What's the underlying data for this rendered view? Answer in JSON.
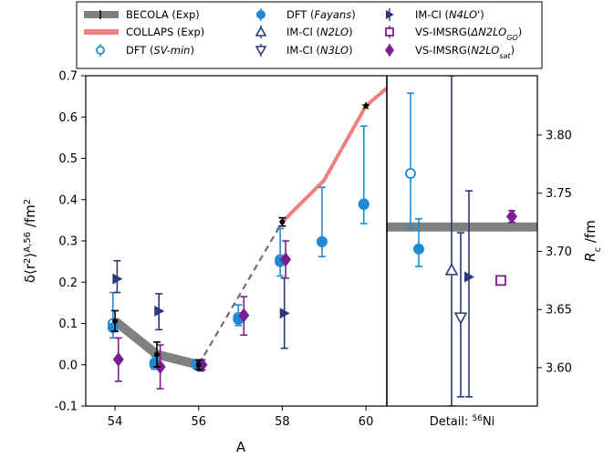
{
  "chart_data": [
    {
      "type": "scatter",
      "panel": "main",
      "xlabel": "A",
      "ylabel": "δ⟨r²⟩^{A,56} /fm²",
      "xlim": [
        53.3,
        60.5
      ],
      "ylim": [
        -0.1,
        0.7
      ],
      "x_ticks": [
        54,
        56,
        58,
        60
      ],
      "y_ticks": [
        -0.1,
        0.0,
        0.1,
        0.2,
        0.3,
        0.4,
        0.5,
        0.6,
        0.7
      ],
      "series": [
        {
          "name": "BECOLA (Exp)",
          "style": "band-line-black-errorbars",
          "points": [
            {
              "x": 54,
              "y": 0.106,
              "err": 0.025
            },
            {
              "x": 55,
              "y": 0.025,
              "err": 0.03
            },
            {
              "x": 56,
              "y": 0.0,
              "err": 0.012
            },
            {
              "x": 58,
              "y": 0.346,
              "err": 0.01
            }
          ]
        },
        {
          "name": "COLLAPS (Exp)",
          "style": "pink-line",
          "points": [
            {
              "x": 58,
              "y": 0.346
            },
            {
              "x": 59,
              "y": 0.447
            },
            {
              "x": 60,
              "y": 0.627
            },
            {
              "x": 60.5,
              "y": 0.67
            }
          ]
        },
        {
          "name": "DFT (SV-min)",
          "style": "hollow-circle",
          "points": [
            {
              "x": 54,
              "y": 0.1,
              "lo": 0.065,
              "hi": 0.175
            },
            {
              "x": 55,
              "y": 0.0,
              "lo": -0.01,
              "hi": 0.02
            },
            {
              "x": 56,
              "y": 0.0,
              "lo": -0.01,
              "hi": 0.01
            },
            {
              "x": 57,
              "y": 0.115,
              "lo": 0.095,
              "hi": 0.145
            },
            {
              "x": 58,
              "y": 0.255,
              "lo": 0.215,
              "hi": 0.33
            },
            {
              "x": 59,
              "y": 0.298,
              "lo": 0.262,
              "hi": 0.43
            },
            {
              "x": 60,
              "y": 0.39,
              "lo": 0.342,
              "hi": 0.578
            }
          ]
        },
        {
          "name": "DFT (Fayans)",
          "style": "filled-circle",
          "points": [
            {
              "x": 54,
              "y": 0.09
            },
            {
              "x": 55,
              "y": 0.005
            },
            {
              "x": 56,
              "y": 0.0
            },
            {
              "x": 57,
              "y": 0.11
            },
            {
              "x": 58,
              "y": 0.25
            },
            {
              "x": 59,
              "y": 0.298
            },
            {
              "x": 60,
              "y": 0.388
            }
          ]
        },
        {
          "name": "IM-CI (N4LO')",
          "style": "right-triangle",
          "points": [
            {
              "x": 54,
              "y": 0.208,
              "lo": 0.175,
              "hi": 0.252
            },
            {
              "x": 55,
              "y": 0.13,
              "lo": 0.085,
              "hi": 0.172
            },
            {
              "x": 56,
              "y": 0.0,
              "lo": -0.015,
              "hi": 0.012
            },
            {
              "x": 58,
              "y": 0.125,
              "lo": 0.04,
              "hi": 0.21
            }
          ]
        },
        {
          "name": "VS-IMSRG(N2LO_sat)",
          "style": "diamond",
          "points": [
            {
              "x": 54,
              "y": 0.013,
              "lo": -0.04,
              "hi": 0.065
            },
            {
              "x": 55,
              "y": -0.005,
              "lo": -0.058,
              "hi": 0.048
            },
            {
              "x": 56,
              "y": 0.0,
              "lo": -0.012,
              "hi": 0.012
            },
            {
              "x": 57,
              "y": 0.12,
              "lo": 0.072,
              "hi": 0.165
            },
            {
              "x": 58,
              "y": 0.255,
              "lo": 0.21,
              "hi": 0.3
            }
          ]
        }
      ]
    },
    {
      "type": "scatter",
      "panel": "detail",
      "xlabel": "Detail: ⁵⁶Ni",
      "ylabel": "R_c /fm",
      "ylim": [
        3.567,
        3.851
      ],
      "y_ticks": [
        3.6,
        3.65,
        3.7,
        3.75,
        3.8
      ],
      "band": {
        "name": "experimental R_c",
        "y": 3.721
      },
      "series": [
        {
          "name": "DFT (SV-min)",
          "style": "hollow-circle",
          "y": 3.767,
          "lo": 3.72,
          "hi": 3.836
        },
        {
          "name": "DFT (Fayans)",
          "style": "filled-circle",
          "y": 3.702,
          "lo": 3.687,
          "hi": 3.728
        },
        {
          "name": "IM-CI (N2LO)",
          "style": "up-triangle",
          "y": 3.684,
          "lo": 3.567,
          "hi": 3.851
        },
        {
          "name": "IM-CI (N3LO)",
          "style": "down-triangle",
          "y": 3.643,
          "lo": 3.575,
          "hi": 3.716
        },
        {
          "name": "IM-CI (N4LO')",
          "style": "right-triangle",
          "y": 3.678,
          "lo": 3.575,
          "hi": 3.752
        },
        {
          "name": "VS-IMSRG(ΔN2LO_GO)",
          "style": "square",
          "y": 3.675
        },
        {
          "name": "VS-IMSRG(N2LO_sat)",
          "style": "diamond",
          "y": 3.73,
          "lo": 3.725,
          "hi": 3.735
        }
      ]
    }
  ],
  "legend": {
    "placement": "top",
    "entries": [
      {
        "label": "BECOLA (Exp)"
      },
      {
        "label": "COLLAPS (Exp)"
      },
      {
        "label": "DFT (SV-min)"
      },
      {
        "label": "DFT (Fayans)"
      },
      {
        "label": "IM-CI (N2LO)"
      },
      {
        "label": "IM-CI (N3LO)"
      },
      {
        "label": "IM-CI (N4LO')"
      },
      {
        "label": "VS-IMSRG(ΔN2LO_GO)"
      },
      {
        "label": "VS-IMSRG(N2LO_sat)"
      }
    ]
  },
  "colors": {
    "band_gray": "#808080",
    "collaps_pink": "#f08080",
    "dft_blue": "#1f8ad1",
    "imci_navy": "#2a3a78",
    "vs_purple": "#7a1f8f",
    "black": "#000000"
  }
}
